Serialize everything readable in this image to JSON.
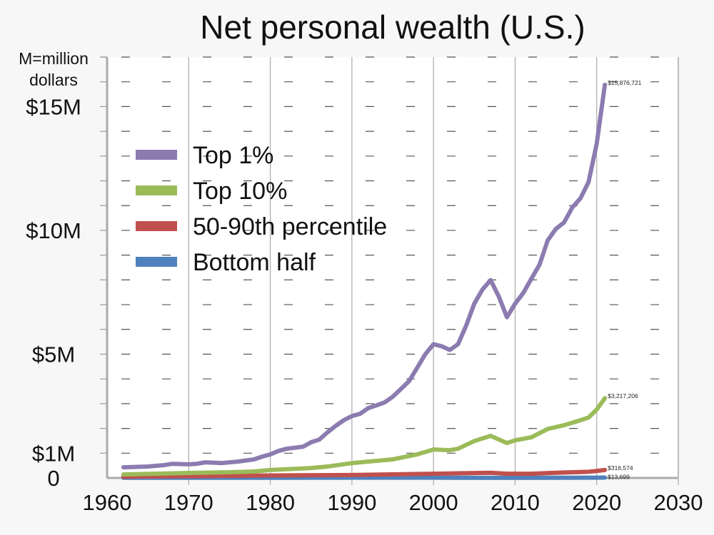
{
  "chart_data": {
    "type": "line",
    "title": "Net personal wealth (U.S.)",
    "ylabel": "M=million dollars",
    "xlim": [
      1960,
      2030
    ],
    "ylim": [
      0,
      17
    ],
    "x_ticks": [
      "1960",
      "1970",
      "1980",
      "1990",
      "2000",
      "2010",
      "2020",
      "2030"
    ],
    "y_ticks": [
      {
        "value": 0,
        "label": "0"
      },
      {
        "value": 1,
        "label": "$1M"
      },
      {
        "value": 5,
        "label": "$5M"
      },
      {
        "value": 10,
        "label": "$10M"
      },
      {
        "value": 15,
        "label": "$15M"
      }
    ],
    "grid": true,
    "legend_position": "upper-left",
    "series": [
      {
        "name": "Top 1%",
        "color": "#8c7bb0",
        "end_label": "$15,876,721",
        "x": [
          1962,
          1965,
          1967,
          1968,
          1970,
          1971,
          1972,
          1974,
          1976,
          1978,
          1979,
          1980,
          1981,
          1982,
          1984,
          1985,
          1986,
          1987,
          1988,
          1989,
          1990,
          1991,
          1992,
          1993,
          1994,
          1995,
          1996,
          1997,
          1998,
          1999,
          2000,
          2001,
          2002,
          2003,
          2004,
          2005,
          2006,
          2007,
          2008,
          2009,
          2010,
          2011,
          2012,
          2013,
          2014,
          2015,
          2016,
          2017,
          2018,
          2019,
          2020,
          2021
        ],
        "y": [
          0.43,
          0.46,
          0.52,
          0.57,
          0.55,
          0.57,
          0.63,
          0.6,
          0.66,
          0.75,
          0.86,
          0.95,
          1.09,
          1.18,
          1.26,
          1.44,
          1.55,
          1.84,
          2.1,
          2.33,
          2.5,
          2.59,
          2.82,
          2.93,
          3.05,
          3.28,
          3.59,
          3.91,
          4.45,
          5.0,
          5.4,
          5.32,
          5.17,
          5.4,
          6.15,
          7.04,
          7.61,
          7.99,
          7.33,
          6.49,
          7.04,
          7.47,
          8.05,
          8.62,
          9.6,
          10.06,
          10.32,
          10.92,
          11.29,
          11.95,
          13.5,
          15.88
        ]
      },
      {
        "name": "Top 10%",
        "color": "#9bbb59",
        "end_label": "$3,217,206",
        "x": [
          1962,
          1970,
          1975,
          1978,
          1980,
          1985,
          1987,
          1990,
          1995,
          1998,
          2000,
          2002,
          2003,
          2005,
          2007,
          2009,
          2010,
          2012,
          2014,
          2016,
          2018,
          2019,
          2020,
          2021
        ],
        "y": [
          0.14,
          0.2,
          0.23,
          0.26,
          0.32,
          0.4,
          0.46,
          0.6,
          0.75,
          0.95,
          1.15,
          1.12,
          1.18,
          1.49,
          1.7,
          1.41,
          1.52,
          1.64,
          1.98,
          2.13,
          2.33,
          2.44,
          2.76,
          3.22
        ]
      },
      {
        "name": "50-90th percentile",
        "color": "#c0504d",
        "end_label": "$316,574",
        "x": [
          1962,
          1970,
          1980,
          1990,
          2000,
          2007,
          2009,
          2012,
          2016,
          2019,
          2020,
          2021
        ],
        "y": [
          0.05,
          0.07,
          0.1,
          0.12,
          0.17,
          0.21,
          0.17,
          0.17,
          0.22,
          0.25,
          0.28,
          0.32
        ]
      },
      {
        "name": "Bottom half",
        "color": "#4f81bd",
        "end_label": "$13,699",
        "x": [
          1962,
          1980,
          2000,
          2010,
          2020,
          2021
        ],
        "y": [
          0.006,
          0.008,
          0.01,
          0.004,
          0.011,
          0.014
        ]
      }
    ]
  }
}
